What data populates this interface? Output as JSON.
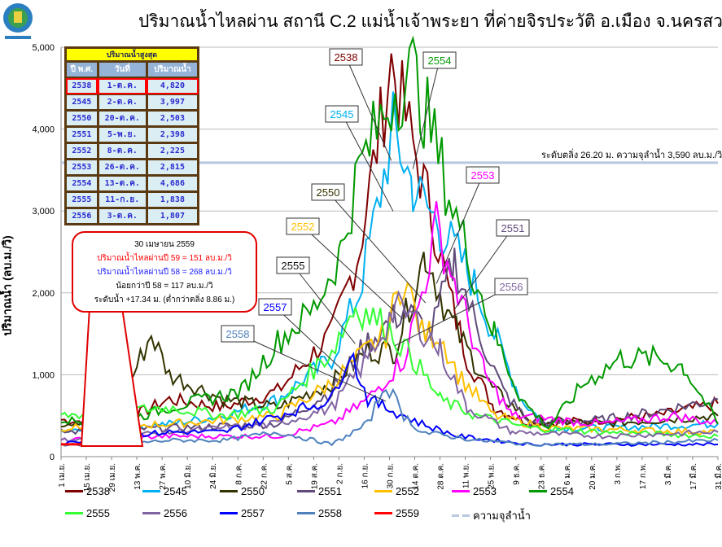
{
  "title": "ปริมาณน้ำไหลผ่าน สถานี C.2 แม่น้ำเจ้าพระยา ที่ค่ายจิรประวัติ อ.เมือง จ.นครสวรรค์",
  "peak_table": {
    "title": "ปริมาณน้ำสูงสุด",
    "headers": [
      "ปี พ.ศ.",
      "วันที่",
      "ปริมาณน้ำ"
    ],
    "rows": [
      [
        "2538",
        "1-ต.ค.",
        "4,820"
      ],
      [
        "2545",
        "2-ต.ค.",
        "3,997"
      ],
      [
        "2550",
        "20-ต.ค.",
        "2,503"
      ],
      [
        "2551",
        "5-พ.ย.",
        "2,398"
      ],
      [
        "2552",
        "8-ต.ค.",
        "2,225"
      ],
      [
        "2553",
        "26-ต.ค.",
        "2,815"
      ],
      [
        "2554",
        "13-ต.ค.",
        "4,686"
      ],
      [
        "2555",
        "11-ก.ย.",
        "1,838"
      ],
      [
        "2556",
        "3-ต.ค.",
        "1,807"
      ]
    ]
  },
  "callout": {
    "date": "30 เมษายน 2559",
    "line_59": "ปริมาณน้ำไหลผ่านปี 59   =  151  ลบ.ม./วิ",
    "line_58": "ปริมาณน้ำไหลผ่านปี 58   =  268  ลบ.ม./วิ",
    "diff": "น้อยกว่าปี 58 =  117  ลบ.ม./วิ",
    "level": "ระดับน้ำ +17.34 ม.  (ต่ำกว่าตลิ่ง 8.86 ม.)"
  },
  "reference_label": "ระดับตลิ่ง 26.20 ม. ความจุลำน้ำ 3,590 ลบ.ม./วิ",
  "chart_data": {
    "type": "line",
    "title": "ปริมาณน้ำไหลผ่าน สถานี C.2 แม่น้ำเจ้าพระยา ที่ค่ายจิรประวัติ อ.เมือง จ.นครสวรรค์",
    "ylabel": "ปริมาณน้ำ (ลบ.ม./วิ)",
    "xlabel": "",
    "ylim": [
      0,
      5000
    ],
    "xlim_days": [
      0,
      364
    ],
    "yticks": [
      "0",
      "1,000",
      "2,000",
      "3,000",
      "4,000",
      "5,000"
    ],
    "xticks": [
      "1 เม.ย.",
      "15 เม.ย.",
      "29 เม.ย.",
      "13 พ.ค.",
      "27 พ.ค.",
      "10 มิ.ย.",
      "24 มิ.ย.",
      "8 ก.ค.",
      "22 ก.ค.",
      "5 ส.ค.",
      "19 ส.ค.",
      "2 ก.ย.",
      "16 ก.ย.",
      "30 ก.ย.",
      "14 ต.ค.",
      "28 ต.ค.",
      "11 พ.ย.",
      "25 พ.ย.",
      "9 ธ.ค.",
      "23 ธ.ค.",
      "6 ม.ค.",
      "20 ม.ค.",
      "3 ก.พ.",
      "17 ก.พ.",
      "3 มี.ค.",
      "17 มี.ค.",
      "31 มี.ค."
    ],
    "grid": true,
    "legend_position": "bottom",
    "reference": {
      "name": "ความจุลำน้ำ",
      "value": 3590,
      "color": "#b8c8e0"
    },
    "series": [
      {
        "name": "2538",
        "color": "#7f0000",
        "points": [
          [
            0,
            450
          ],
          [
            30,
            400
          ],
          [
            60,
            700
          ],
          [
            90,
            600
          ],
          [
            120,
            800
          ],
          [
            150,
            1500
          ],
          [
            165,
            2500
          ],
          [
            175,
            3800
          ],
          [
            183,
            4820
          ],
          [
            195,
            3800
          ],
          [
            205,
            3000
          ],
          [
            215,
            2000
          ],
          [
            225,
            1200
          ],
          [
            240,
            600
          ],
          [
            260,
            400
          ],
          [
            300,
            450
          ],
          [
            330,
            500
          ],
          [
            364,
            650
          ]
        ]
      },
      {
        "name": "2545",
        "color": "#00b0f0",
        "points": [
          [
            0,
            300
          ],
          [
            30,
            350
          ],
          [
            60,
            400
          ],
          [
            90,
            500
          ],
          [
            120,
            700
          ],
          [
            150,
            1200
          ],
          [
            165,
            2000
          ],
          [
            175,
            3000
          ],
          [
            184,
            3997
          ],
          [
            195,
            3300
          ],
          [
            210,
            2800
          ],
          [
            225,
            2300
          ],
          [
            240,
            1500
          ],
          [
            255,
            700
          ],
          [
            270,
            350
          ],
          [
            300,
            350
          ],
          [
            364,
            400
          ]
        ]
      },
      {
        "name": "2550",
        "color": "#333300",
        "points": [
          [
            0,
            400
          ],
          [
            30,
            500
          ],
          [
            50,
            1500
          ],
          [
            60,
            1000
          ],
          [
            90,
            700
          ],
          [
            120,
            600
          ],
          [
            150,
            900
          ],
          [
            170,
            1300
          ],
          [
            185,
            1300
          ],
          [
            202,
            2503
          ],
          [
            215,
            1700
          ],
          [
            225,
            1300
          ],
          [
            240,
            800
          ],
          [
            260,
            450
          ],
          [
            300,
            400
          ],
          [
            364,
            500
          ]
        ]
      },
      {
        "name": "2551",
        "color": "#604a7b",
        "points": [
          [
            0,
            300
          ],
          [
            60,
            350
          ],
          [
            120,
            400
          ],
          [
            150,
            800
          ],
          [
            170,
            1400
          ],
          [
            190,
            1800
          ],
          [
            205,
            1500
          ],
          [
            218,
            2398
          ],
          [
            230,
            1600
          ],
          [
            245,
            800
          ],
          [
            260,
            400
          ],
          [
            300,
            450
          ],
          [
            330,
            550
          ],
          [
            364,
            700
          ]
        ]
      },
      {
        "name": "2552",
        "color": "#ffc000",
        "points": [
          [
            0,
            350
          ],
          [
            60,
            400
          ],
          [
            120,
            500
          ],
          [
            150,
            900
          ],
          [
            170,
            1300
          ],
          [
            180,
            1500
          ],
          [
            190,
            2225
          ],
          [
            200,
            1500
          ],
          [
            210,
            1500
          ],
          [
            220,
            1000
          ],
          [
            240,
            500
          ],
          [
            270,
            350
          ],
          [
            364,
            300
          ]
        ]
      },
      {
        "name": "2553",
        "color": "#ff00ff",
        "points": [
          [
            0,
            200
          ],
          [
            60,
            250
          ],
          [
            120,
            250
          ],
          [
            150,
            400
          ],
          [
            170,
            700
          ],
          [
            190,
            1200
          ],
          [
            200,
            2000
          ],
          [
            208,
            2815
          ],
          [
            220,
            2000
          ],
          [
            235,
            1000
          ],
          [
            250,
            500
          ],
          [
            300,
            400
          ],
          [
            340,
            500
          ],
          [
            364,
            400
          ]
        ]
      },
      {
        "name": "2554",
        "color": "#009900",
        "points": [
          [
            0,
            450
          ],
          [
            30,
            400
          ],
          [
            60,
            600
          ],
          [
            100,
            800
          ],
          [
            120,
            1400
          ],
          [
            140,
            1800
          ],
          [
            155,
            2500
          ],
          [
            165,
            3500
          ],
          [
            175,
            4000
          ],
          [
            185,
            4500
          ],
          [
            195,
            4686
          ],
          [
            205,
            4000
          ],
          [
            215,
            3200
          ],
          [
            225,
            2500
          ],
          [
            240,
            1500
          ],
          [
            255,
            700
          ],
          [
            270,
            350
          ],
          [
            290,
            900
          ],
          [
            310,
            1200
          ],
          [
            330,
            1200
          ],
          [
            345,
            1100
          ],
          [
            364,
            400
          ]
        ]
      },
      {
        "name": "2555",
        "color": "#33ff33",
        "points": [
          [
            0,
            500
          ],
          [
            30,
            550
          ],
          [
            60,
            600
          ],
          [
            90,
            500
          ],
          [
            120,
            600
          ],
          [
            150,
            1300
          ],
          [
            163,
            1838
          ],
          [
            180,
            1600
          ],
          [
            195,
            1200
          ],
          [
            210,
            700
          ],
          [
            230,
            500
          ],
          [
            260,
            350
          ],
          [
            300,
            300
          ],
          [
            364,
            250
          ]
        ]
      },
      {
        "name": "2556",
        "color": "#8064a2",
        "points": [
          [
            0,
            200
          ],
          [
            60,
            300
          ],
          [
            120,
            400
          ],
          [
            150,
            600
          ],
          [
            170,
            1200
          ],
          [
            185,
            1807
          ],
          [
            195,
            1700
          ],
          [
            210,
            1300
          ],
          [
            225,
            600
          ],
          [
            250,
            300
          ],
          [
            300,
            250
          ],
          [
            364,
            300
          ]
        ]
      },
      {
        "name": "2557",
        "color": "#0000ff",
        "points": [
          [
            0,
            150
          ],
          [
            30,
            250
          ],
          [
            60,
            300
          ],
          [
            90,
            300
          ],
          [
            120,
            500
          ],
          [
            150,
            700
          ],
          [
            160,
            1300
          ],
          [
            170,
            700
          ],
          [
            180,
            600
          ],
          [
            190,
            500
          ],
          [
            200,
            400
          ],
          [
            220,
            250
          ],
          [
            260,
            150
          ],
          [
            300,
            150
          ],
          [
            364,
            150
          ]
        ]
      },
      {
        "name": "2558",
        "color": "#4f81bd",
        "points": [
          [
            0,
            150
          ],
          [
            30,
            150
          ],
          [
            60,
            200
          ],
          [
            90,
            200
          ],
          [
            120,
            300
          ],
          [
            150,
            150
          ],
          [
            170,
            400
          ],
          [
            180,
            900
          ],
          [
            190,
            500
          ],
          [
            200,
            300
          ],
          [
            230,
            200
          ],
          [
            260,
            150
          ],
          [
            300,
            150
          ],
          [
            364,
            200
          ]
        ]
      },
      {
        "name": "2559",
        "color": "#ff0000",
        "points": [
          [
            0,
            150
          ],
          [
            29,
            151
          ]
        ]
      }
    ]
  }
}
